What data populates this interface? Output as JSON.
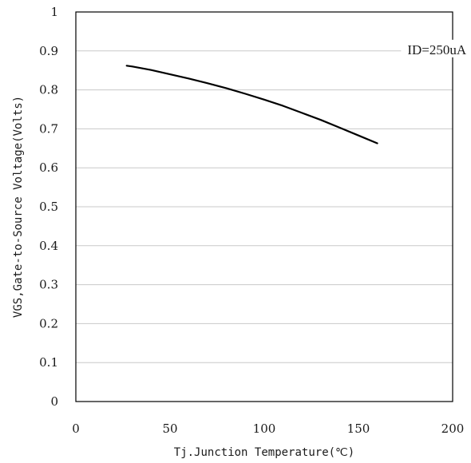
{
  "chart_data": {
    "type": "line",
    "xlabel": "Tj.Junction Temperature(℃)",
    "ylabel": "VGS,Gate-to-Source Voltage(Volts)",
    "xlim": [
      0,
      200
    ],
    "ylim": [
      0,
      1
    ],
    "xticks": [
      0,
      50,
      100,
      150,
      200
    ],
    "xtick_labels": [
      "0",
      "50",
      "100",
      "150",
      "200"
    ],
    "yticks": [
      0,
      0.1,
      0.2,
      0.3,
      0.4,
      0.5,
      0.6,
      0.7,
      0.8,
      0.9,
      1
    ],
    "ytick_labels": [
      "0",
      "0.1",
      "0.2",
      "0.3",
      "0.4",
      "0.5",
      "0.6",
      "0.7",
      "0.8",
      "0.9",
      "1"
    ],
    "grid": "horizontal",
    "series": [
      {
        "x": [
          27,
          30,
          40,
          50,
          60,
          70,
          80,
          90,
          100,
          110,
          120,
          130,
          140,
          150,
          160
        ],
        "y": [
          0.862,
          0.86,
          0.851,
          0.84,
          0.829,
          0.817,
          0.804,
          0.79,
          0.775,
          0.759,
          0.741,
          0.723,
          0.703,
          0.683,
          0.663
        ],
        "color": "#000000"
      }
    ],
    "annotations": [
      {
        "text": "ID=250uA",
        "x": 176,
        "y": 0.9
      }
    ]
  }
}
